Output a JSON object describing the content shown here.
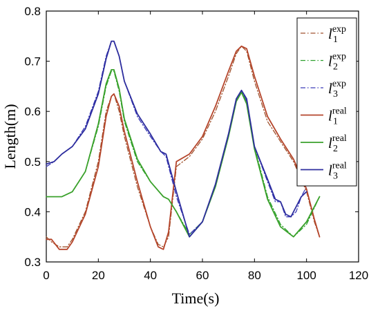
{
  "chart_data": {
    "type": "line",
    "xlabel": "Time(s)",
    "ylabel": "Length(m)",
    "xlim": [
      0,
      120
    ],
    "ylim": [
      0.3,
      0.8
    ],
    "xticks": [
      0,
      20,
      40,
      60,
      80,
      100,
      120
    ],
    "yticks": [
      0.3,
      0.4,
      0.5,
      0.6,
      0.7,
      0.8
    ],
    "xtick_labels": [
      "0",
      "20",
      "40",
      "60",
      "80",
      "100",
      "120"
    ],
    "ytick_labels": [
      "0.3",
      "0.4",
      "0.5",
      "0.6",
      "0.7",
      "0.8"
    ],
    "grid": false,
    "legend_position": "top-right",
    "series": [
      {
        "name": "l1exp",
        "base": "l",
        "sub": "1",
        "sup": "exp",
        "color": "#a0522d",
        "dash": "dashdot",
        "x": [
          0,
          2,
          5,
          8,
          10,
          15,
          20,
          23,
          25,
          26,
          28,
          30,
          35,
          40,
          43,
          45,
          47,
          50,
          55,
          60,
          65,
          70,
          73,
          75,
          77,
          80,
          85,
          90,
          95,
          100,
          103,
          105
        ],
        "y": [
          0.35,
          0.34,
          0.33,
          0.33,
          0.345,
          0.4,
          0.5,
          0.6,
          0.63,
          0.635,
          0.6,
          0.55,
          0.45,
          0.37,
          0.335,
          0.33,
          0.35,
          0.49,
          0.51,
          0.545,
          0.6,
          0.67,
          0.715,
          0.73,
          0.72,
          0.66,
          0.58,
          0.54,
          0.5,
          0.44,
          0.38,
          0.35
        ]
      },
      {
        "name": "l2exp",
        "base": "l",
        "sub": "2",
        "sup": "exp",
        "color": "#2ca02c",
        "dash": "dashdot",
        "x": [
          0,
          3,
          6,
          10,
          15,
          20,
          23,
          25,
          26,
          28,
          30,
          35,
          40,
          45,
          47,
          50,
          55,
          60,
          65,
          70,
          73,
          75,
          77,
          80,
          85,
          90,
          95,
          100,
          105
        ],
        "y": [
          0.43,
          0.43,
          0.43,
          0.44,
          0.48,
          0.57,
          0.65,
          0.68,
          0.68,
          0.64,
          0.58,
          0.5,
          0.46,
          0.43,
          0.425,
          0.4,
          0.355,
          0.38,
          0.45,
          0.55,
          0.62,
          0.64,
          0.62,
          0.53,
          0.43,
          0.375,
          0.35,
          0.375,
          0.43
        ]
      },
      {
        "name": "l3exp",
        "base": "l",
        "sub": "3",
        "sup": "exp",
        "color": "#3b3bb8",
        "dash": "dashdot",
        "x": [
          0,
          3,
          6,
          10,
          15,
          20,
          23,
          25,
          26,
          28,
          30,
          35,
          40,
          44,
          46,
          50,
          55,
          60,
          65,
          70,
          73,
          75,
          77,
          80,
          85,
          88,
          90,
          92,
          94,
          96,
          98,
          100,
          103,
          105
        ],
        "y": [
          0.49,
          0.5,
          0.515,
          0.53,
          0.57,
          0.64,
          0.71,
          0.74,
          0.74,
          0.71,
          0.66,
          0.59,
          0.55,
          0.52,
          0.51,
          0.43,
          0.355,
          0.38,
          0.45,
          0.55,
          0.62,
          0.64,
          0.62,
          0.53,
          0.46,
          0.42,
          0.42,
          0.39,
          0.39,
          0.4,
          0.43,
          0.45,
          0.47,
          0.48
        ]
      },
      {
        "name": "l1real",
        "base": "l",
        "sub": "1",
        "sup": "real",
        "color": "#b5452b",
        "dash": "solid",
        "x": [
          0,
          2,
          5,
          8,
          10,
          15,
          20,
          23,
          25,
          26,
          28,
          30,
          35,
          40,
          43,
          45,
          47,
          50,
          55,
          60,
          65,
          70,
          73,
          75,
          77,
          80,
          85,
          90,
          95,
          100,
          103,
          105
        ],
        "y": [
          0.345,
          0.345,
          0.325,
          0.325,
          0.34,
          0.395,
          0.49,
          0.59,
          0.63,
          0.635,
          0.61,
          0.56,
          0.46,
          0.37,
          0.33,
          0.325,
          0.36,
          0.5,
          0.515,
          0.55,
          0.61,
          0.68,
          0.72,
          0.73,
          0.725,
          0.67,
          0.59,
          0.545,
          0.505,
          0.445,
          0.385,
          0.35
        ]
      },
      {
        "name": "l2real",
        "base": "l",
        "sub": "2",
        "sup": "real",
        "color": "#3aa12b",
        "dash": "solid",
        "x": [
          0,
          3,
          6,
          10,
          15,
          20,
          23,
          25,
          26,
          28,
          30,
          35,
          40,
          45,
          47,
          50,
          55,
          60,
          65,
          70,
          73,
          75,
          77,
          80,
          85,
          90,
          95,
          100,
          105
        ],
        "y": [
          0.43,
          0.43,
          0.43,
          0.44,
          0.48,
          0.575,
          0.655,
          0.683,
          0.683,
          0.645,
          0.585,
          0.505,
          0.46,
          0.43,
          0.425,
          0.4,
          0.35,
          0.38,
          0.45,
          0.55,
          0.62,
          0.638,
          0.615,
          0.525,
          0.425,
          0.37,
          0.35,
          0.38,
          0.43
        ]
      },
      {
        "name": "l3real",
        "base": "l",
        "sub": "3",
        "sup": "real",
        "color": "#2d2d9e",
        "dash": "solid",
        "x": [
          0,
          3,
          6,
          10,
          15,
          20,
          23,
          25,
          26,
          28,
          30,
          35,
          40,
          44,
          46,
          50,
          55,
          60,
          65,
          70,
          73,
          75,
          77,
          80,
          85,
          88,
          90,
          92,
          94,
          96,
          98,
          100
        ],
        "y": [
          0.495,
          0.5,
          0.515,
          0.53,
          0.565,
          0.635,
          0.705,
          0.74,
          0.74,
          0.71,
          0.66,
          0.595,
          0.555,
          0.52,
          0.515,
          0.44,
          0.35,
          0.38,
          0.455,
          0.555,
          0.625,
          0.642,
          0.625,
          0.53,
          0.465,
          0.425,
          0.42,
          0.395,
          0.39,
          0.41,
          0.43,
          0.44
        ]
      }
    ]
  }
}
